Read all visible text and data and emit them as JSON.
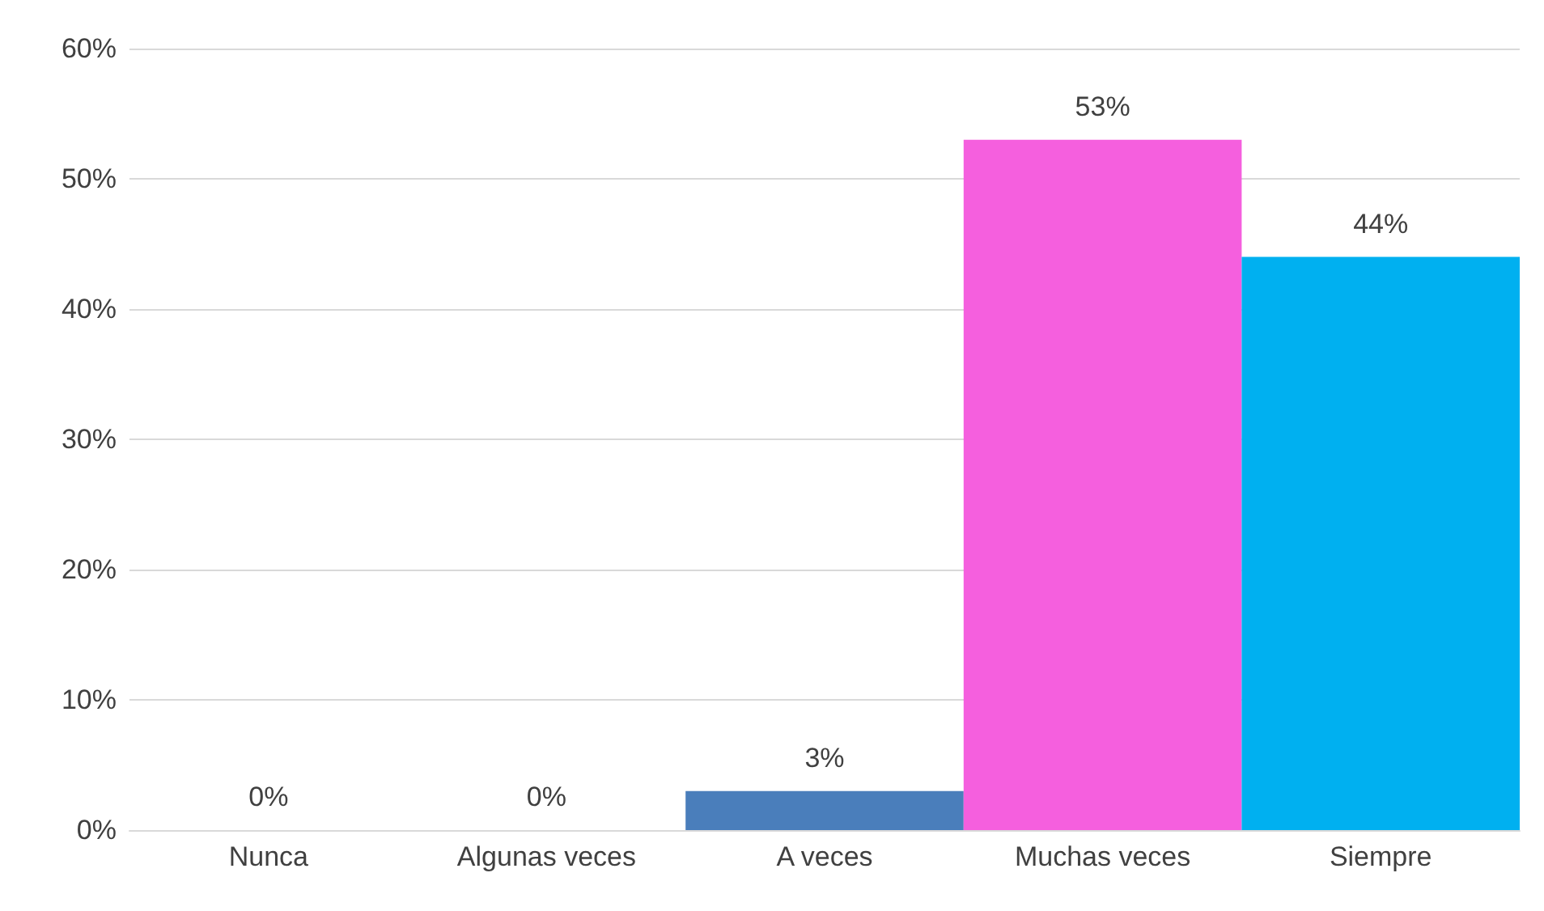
{
  "chart_data": {
    "type": "bar",
    "categories": [
      "Nunca",
      "Algunas veces",
      "A veces",
      "Muchas veces",
      "Siempre"
    ],
    "values": [
      0,
      0,
      3,
      53,
      44
    ],
    "colors": [
      "#4a7ebb",
      "#4a7ebb",
      "#4a7ebb",
      "#f55fde",
      "#00b0f0"
    ],
    "value_labels": [
      "0%",
      "0%",
      "3%",
      "53%",
      "44%"
    ],
    "ylim": [
      0,
      60
    ],
    "yticks": [
      {
        "value": 0,
        "label": "0%"
      },
      {
        "value": 10,
        "label": "10%"
      },
      {
        "value": 20,
        "label": "20%"
      },
      {
        "value": 30,
        "label": "30%"
      },
      {
        "value": 40,
        "label": "40%"
      },
      {
        "value": 50,
        "label": "50%"
      },
      {
        "value": 60,
        "label": "60%"
      }
    ],
    "grid": "y"
  }
}
